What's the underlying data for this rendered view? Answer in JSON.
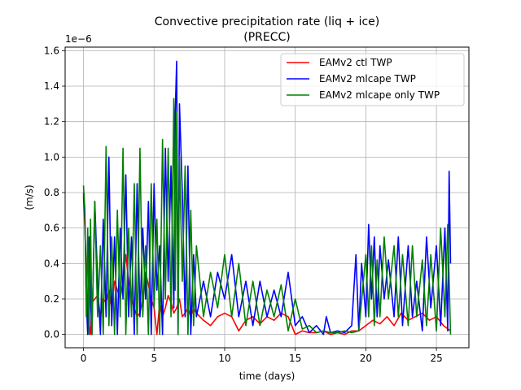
{
  "chart_data": {
    "type": "line",
    "title": "Convective precipitation rate (liq + ice)",
    "subtitle": "(PRECC)",
    "xlabel": "time (days)",
    "ylabel": "(m/s)",
    "y_offset_label": "1e−6",
    "y_scale": 1e-06,
    "xlim": [
      -1.3,
      27.3
    ],
    "ylim": [
      -0.075,
      1.62
    ],
    "x_ticks": [
      0,
      5,
      10,
      15,
      20,
      25
    ],
    "x_tick_labels": [
      "0",
      "5",
      "10",
      "15",
      "20",
      "25"
    ],
    "y_ticks": [
      0.0,
      0.2,
      0.4,
      0.6,
      0.8,
      1.0,
      1.2,
      1.4,
      1.6
    ],
    "y_tick_labels": [
      "0.0",
      "0.2",
      "0.4",
      "0.6",
      "0.8",
      "1.0",
      "1.2",
      "1.4",
      "1.6"
    ],
    "grid": true,
    "legend_position": "top-right",
    "series": [
      {
        "name": "EAMv2 ctl TWP",
        "color": "#ff0000",
        "x": [
          0.0,
          0.1,
          0.2,
          0.3,
          0.4,
          0.5,
          0.6,
          0.8,
          1.0,
          1.2,
          1.4,
          1.6,
          1.8,
          2.0,
          2.2,
          2.4,
          2.6,
          2.8,
          3.0,
          3.2,
          3.4,
          3.6,
          3.8,
          4.0,
          4.2,
          4.4,
          4.6,
          4.8,
          5.0,
          5.2,
          5.4,
          5.6,
          5.8,
          6.0,
          6.2,
          6.4,
          6.6,
          6.8,
          7.0,
          7.2,
          7.4,
          7.6,
          7.8,
          8.0,
          8.5,
          9.0,
          9.5,
          10.0,
          10.5,
          11.0,
          11.5,
          12.0,
          12.5,
          13.0,
          13.5,
          14.0,
          14.5,
          15.0,
          15.5,
          16.0,
          16.5,
          17.0,
          17.5,
          18.0,
          18.5,
          19.0,
          19.5,
          20.0,
          20.5,
          21.0,
          21.5,
          22.0,
          22.5,
          23.0,
          23.5,
          24.0,
          24.5,
          25.0,
          25.5,
          26.0
        ],
        "values": [
          0.78,
          0.6,
          0.35,
          0.15,
          0.05,
          0.0,
          0.18,
          0.2,
          0.22,
          0.1,
          0.2,
          0.18,
          0.25,
          0.15,
          0.3,
          0.25,
          0.2,
          0.3,
          0.45,
          0.3,
          0.2,
          0.15,
          0.1,
          0.12,
          0.2,
          0.35,
          0.28,
          0.2,
          0.15,
          0.0,
          0.18,
          0.1,
          0.15,
          0.22,
          0.18,
          0.12,
          0.15,
          0.2,
          0.1,
          0.12,
          0.15,
          0.1,
          0.15,
          0.12,
          0.08,
          0.05,
          0.1,
          0.12,
          0.1,
          0.02,
          0.08,
          0.1,
          0.06,
          0.1,
          0.08,
          0.12,
          0.1,
          0.0,
          0.02,
          0.01,
          0.01,
          0.02,
          0.0,
          0.01,
          0.0,
          0.02,
          0.02,
          0.05,
          0.08,
          0.06,
          0.1,
          0.05,
          0.12,
          0.08,
          0.1,
          0.12,
          0.08,
          0.1,
          0.05,
          0.02
        ]
      },
      {
        "name": "EAMv2 mlcape TWP",
        "color": "#0000ff",
        "x": [
          0.0,
          0.1,
          0.2,
          0.3,
          0.4,
          0.5,
          0.6,
          0.8,
          1.0,
          1.2,
          1.4,
          1.6,
          1.8,
          2.0,
          2.2,
          2.4,
          2.6,
          2.8,
          3.0,
          3.2,
          3.4,
          3.6,
          3.8,
          4.0,
          4.2,
          4.4,
          4.6,
          4.8,
          5.0,
          5.2,
          5.4,
          5.6,
          5.8,
          6.0,
          6.2,
          6.4,
          6.5,
          6.6,
          6.7,
          6.8,
          7.0,
          7.2,
          7.4,
          7.6,
          7.8,
          8.0,
          8.5,
          9.0,
          9.5,
          10.0,
          10.5,
          11.0,
          11.5,
          12.0,
          12.5,
          13.0,
          13.5,
          14.0,
          14.5,
          15.0,
          15.5,
          16.0,
          16.5,
          17.0,
          17.2,
          17.5,
          18.0,
          18.5,
          19.0,
          19.3,
          19.5,
          19.7,
          20.0,
          20.2,
          20.4,
          20.6,
          20.8,
          21.0,
          21.3,
          21.6,
          22.0,
          22.3,
          22.6,
          23.0,
          23.3,
          23.6,
          24.0,
          24.3,
          24.6,
          25.0,
          25.3,
          25.6,
          25.8,
          25.9,
          26.0
        ],
        "values": [
          0.8,
          0.65,
          0.2,
          0.0,
          0.55,
          0.2,
          0.0,
          0.75,
          0.3,
          0.0,
          0.65,
          0.1,
          1.0,
          0.05,
          0.55,
          0.0,
          0.6,
          0.2,
          0.9,
          0.1,
          0.55,
          0.0,
          0.85,
          0.1,
          0.6,
          0.2,
          0.75,
          0.0,
          0.85,
          0.25,
          0.5,
          0.0,
          1.05,
          0.3,
          0.95,
          0.15,
          1.25,
          1.54,
          0.0,
          1.3,
          0.8,
          0.1,
          0.95,
          0.0,
          0.45,
          0.1,
          0.3,
          0.1,
          0.35,
          0.2,
          0.45,
          0.1,
          0.3,
          0.05,
          0.3,
          0.1,
          0.25,
          0.1,
          0.35,
          0.05,
          0.1,
          0.01,
          0.05,
          0.0,
          0.1,
          0.01,
          0.02,
          0.01,
          0.05,
          0.45,
          0.02,
          0.4,
          0.1,
          0.62,
          0.2,
          0.55,
          0.1,
          0.5,
          0.2,
          0.42,
          0.1,
          0.55,
          0.05,
          0.5,
          0.1,
          0.3,
          0.02,
          0.55,
          0.15,
          0.5,
          0.05,
          0.6,
          0.02,
          0.92,
          0.4
        ]
      },
      {
        "name": "EAMv2 mlcape only TWP",
        "color": "#008000",
        "x": [
          0.0,
          0.1,
          0.2,
          0.3,
          0.4,
          0.5,
          0.6,
          0.8,
          1.0,
          1.2,
          1.4,
          1.6,
          1.8,
          2.0,
          2.2,
          2.4,
          2.6,
          2.8,
          3.0,
          3.2,
          3.4,
          3.6,
          3.8,
          4.0,
          4.2,
          4.4,
          4.6,
          4.8,
          5.0,
          5.2,
          5.4,
          5.6,
          5.8,
          6.0,
          6.2,
          6.4,
          6.5,
          6.6,
          6.7,
          6.8,
          7.0,
          7.2,
          7.4,
          7.6,
          7.8,
          8.0,
          8.5,
          9.0,
          9.5,
          10.0,
          10.5,
          11.0,
          11.5,
          12.0,
          12.5,
          13.0,
          13.5,
          14.0,
          14.5,
          15.0,
          15.5,
          16.0,
          16.5,
          17.0,
          17.5,
          18.0,
          18.5,
          19.0,
          19.5,
          20.0,
          20.2,
          20.4,
          20.6,
          20.8,
          21.0,
          21.3,
          21.6,
          22.0,
          22.3,
          22.6,
          23.0,
          23.3,
          23.6,
          24.0,
          24.3,
          24.6,
          25.0,
          25.3,
          25.6,
          25.8,
          26.0
        ],
        "values": [
          0.84,
          0.7,
          0.1,
          0.6,
          0.0,
          0.65,
          0.0,
          0.75,
          0.1,
          0.5,
          0.0,
          1.06,
          0.05,
          0.55,
          0.0,
          0.7,
          0.1,
          1.05,
          0.0,
          0.6,
          0.1,
          0.85,
          0.0,
          1.05,
          0.1,
          0.5,
          0.0,
          0.85,
          0.15,
          0.65,
          0.0,
          1.1,
          0.2,
          1.05,
          0.1,
          1.33,
          0.25,
          1.25,
          0.0,
          1.0,
          0.3,
          0.95,
          0.0,
          0.7,
          0.05,
          0.5,
          0.1,
          0.35,
          0.15,
          0.45,
          0.1,
          0.4,
          0.05,
          0.3,
          0.05,
          0.25,
          0.1,
          0.28,
          0.02,
          0.2,
          0.03,
          0.05,
          0.01,
          0.02,
          0.01,
          0.01,
          0.02,
          0.01,
          0.02,
          0.45,
          0.1,
          0.5,
          0.05,
          0.42,
          0.1,
          0.55,
          0.2,
          0.5,
          0.1,
          0.45,
          0.05,
          0.5,
          0.1,
          0.42,
          0.05,
          0.45,
          0.02,
          0.6,
          0.1,
          0.62,
          0.0
        ]
      }
    ]
  }
}
